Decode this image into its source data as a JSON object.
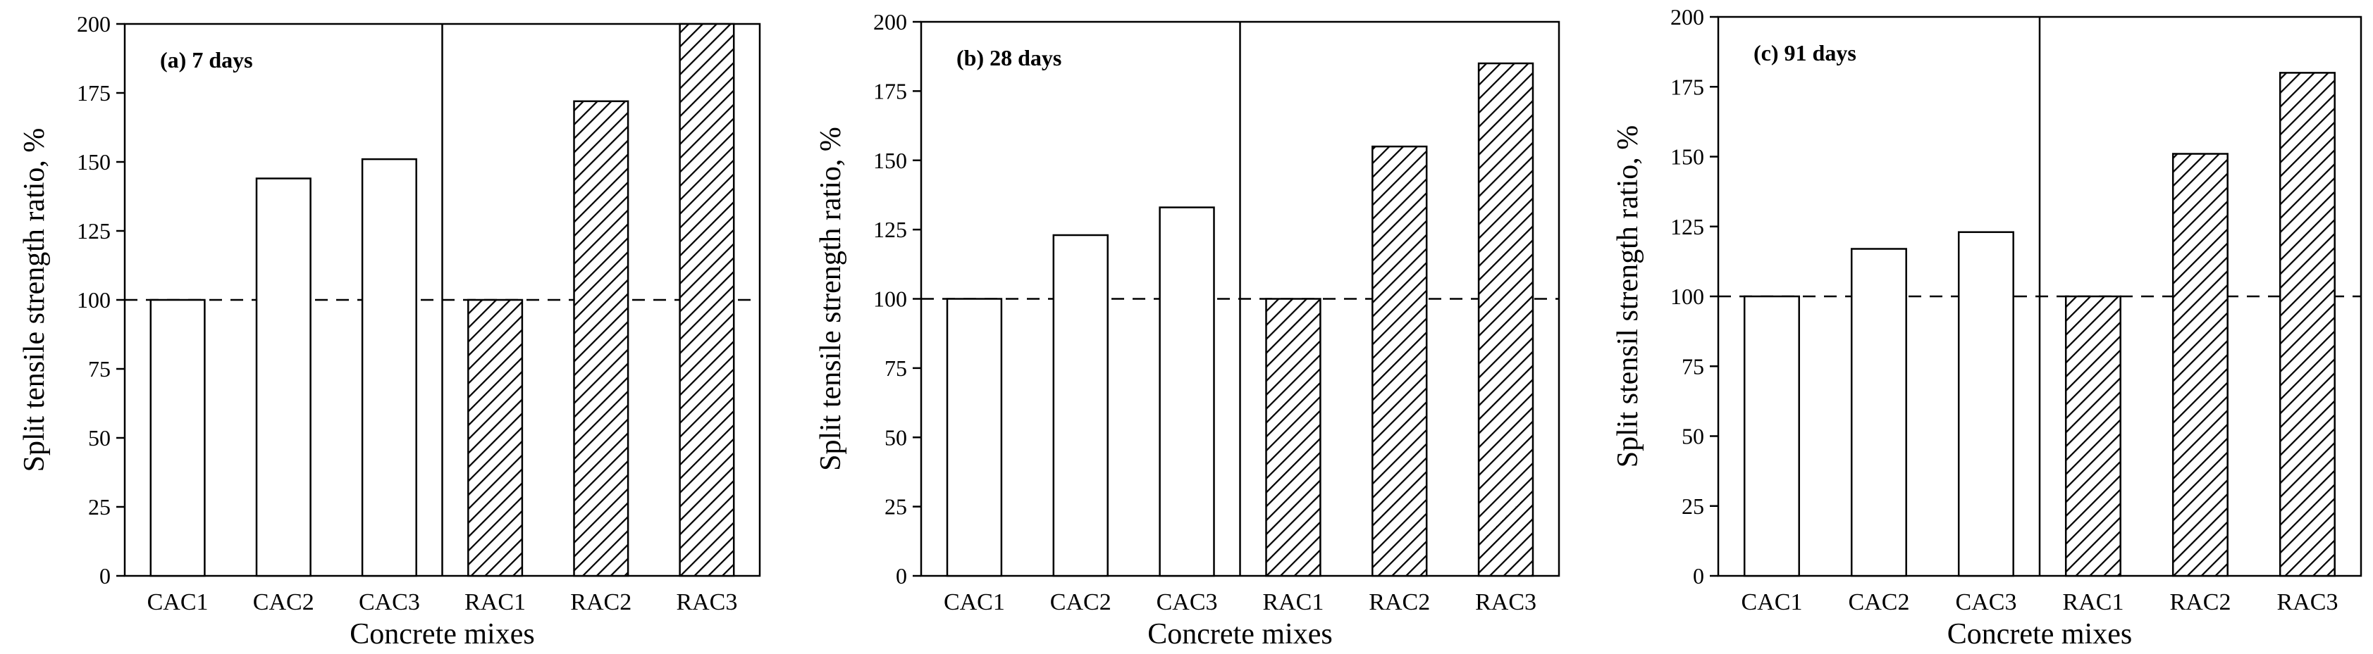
{
  "chart_data": [
    {
      "type": "bar",
      "title": "(a) 7 days",
      "xlabel": "Concrete mixes",
      "ylabel": "Split tensile strength ratio, %",
      "categories": [
        "CAC1",
        "CAC2",
        "CAC3",
        "RAC1",
        "RAC2",
        "RAC3"
      ],
      "values": [
        100,
        144,
        151,
        100,
        172,
        205
      ],
      "ylim": [
        0,
        200
      ],
      "yticks": [
        "0",
        "25",
        "50",
        "75",
        "100",
        "125",
        "150",
        "175",
        "200"
      ],
      "reference_line": 100,
      "grid": false
    },
    {
      "type": "bar",
      "title": "(b) 28 days",
      "xlabel": "Concrete mixes",
      "ylabel": "Split tensile strength ratio, %",
      "categories": [
        "CAC1",
        "CAC2",
        "CAC3",
        "RAC1",
        "RAC2",
        "RAC3"
      ],
      "values": [
        100,
        123,
        133,
        100,
        155,
        185
      ],
      "ylim": [
        0,
        200
      ],
      "yticks": [
        "0",
        "25",
        "50",
        "75",
        "100",
        "125",
        "150",
        "175",
        "200"
      ],
      "reference_line": 100,
      "grid": false
    },
    {
      "type": "bar",
      "title": "(c) 91 days",
      "xlabel": "Concrete mixes",
      "ylabel": "Split stensil strength ratio, %",
      "categories": [
        "CAC1",
        "CAC2",
        "CAC3",
        "RAC1",
        "RAC2",
        "RAC3"
      ],
      "values": [
        100,
        117,
        123,
        100,
        151,
        180
      ],
      "ylim": [
        0,
        200
      ],
      "yticks": [
        "0",
        "25",
        "50",
        "75",
        "100",
        "125",
        "150",
        "175",
        "200"
      ],
      "reference_line": 100,
      "grid": false
    }
  ]
}
